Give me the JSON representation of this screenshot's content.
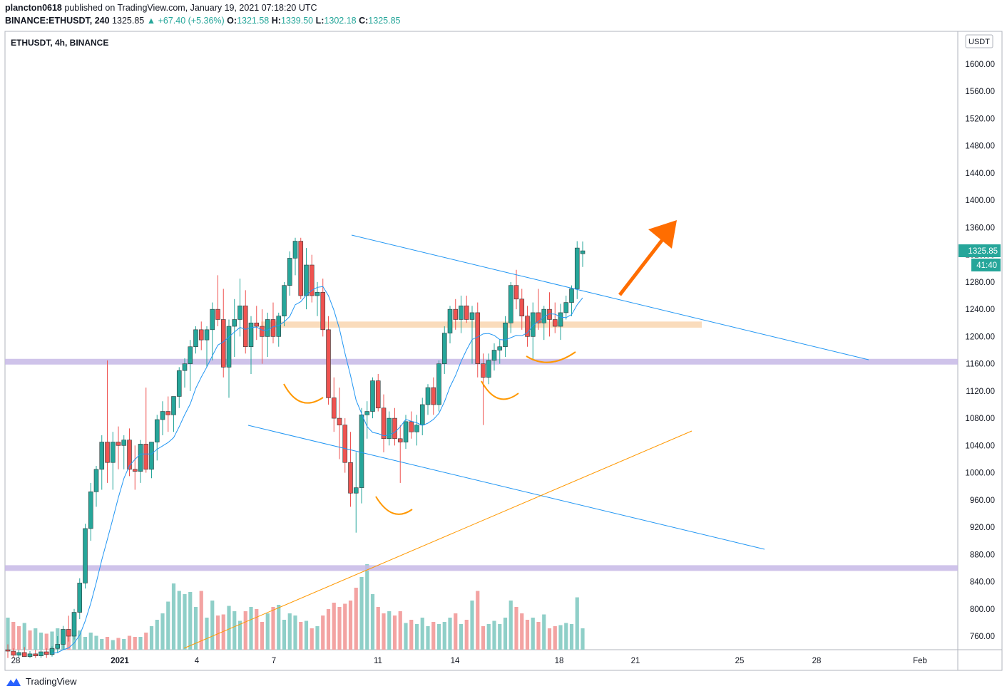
{
  "header": {
    "publisher": "plancton0618",
    "published_text": "published on TradingView.com, January 19, 2021 07:18:20 UTC",
    "symbol": "BINANCE:ETHUSDT, 240",
    "last": "1325.85",
    "change": "▲ +67.40 (+5.36%)",
    "o_label": "O:",
    "o": "1321.58",
    "h_label": "H:",
    "h": "1339.50",
    "l_label": "L:",
    "l": "1302.18",
    "c_label": "C:",
    "c": "1325.85"
  },
  "pane_title": "ETHUSDT, 4h, BINANCE",
  "currency_label": "USDT",
  "price_badge": "1325.85",
  "countdown_badge": "41:40",
  "footer_brand": "TradingView",
  "colors": {
    "up": "#26a69a",
    "down": "#ef5350",
    "vol_up": "#8fcfc8",
    "vol_down": "#f3a3a2",
    "ma": "#2196f3",
    "channel": "#2196f3",
    "support_purple": "#c7b9e6",
    "zone_orange": "#f9d3ab",
    "trend_orange": "#ff9800",
    "arrow": "#ff6d00"
  },
  "chart_data": {
    "type": "candlestick",
    "title": "ETHUSDT, 4h, BINANCE",
    "y_axis_ticks": [
      "760.00",
      "800.00",
      "840.00",
      "880.00",
      "920.00",
      "960.00",
      "1000.00",
      "1040.00",
      "1080.00",
      "1120.00",
      "1160.00",
      "1200.00",
      "1240.00",
      "1280.00",
      "1320.00",
      "1360.00",
      "1400.00",
      "1440.00",
      "1480.00",
      "1520.00",
      "1560.00",
      "1600.00"
    ],
    "x_axis_ticks": [
      "28",
      "2021",
      "4",
      "7",
      "11",
      "14",
      "18",
      "21",
      "25",
      "28",
      "Feb"
    ],
    "ylim": [
      728,
      1640
    ],
    "ohlc": [
      {
        "o": 740,
        "h": 748,
        "l": 728,
        "c": 738
      },
      {
        "o": 738,
        "h": 742,
        "l": 728,
        "c": 732
      },
      {
        "o": 732,
        "h": 740,
        "l": 728,
        "c": 736
      },
      {
        "o": 736,
        "h": 744,
        "l": 730,
        "c": 730
      },
      {
        "o": 730,
        "h": 738,
        "l": 728,
        "c": 734
      },
      {
        "o": 734,
        "h": 740,
        "l": 728,
        "c": 731
      },
      {
        "o": 731,
        "h": 740,
        "l": 728,
        "c": 737
      },
      {
        "o": 737,
        "h": 742,
        "l": 728,
        "c": 733
      },
      {
        "o": 733,
        "h": 745,
        "l": 730,
        "c": 742
      },
      {
        "o": 742,
        "h": 760,
        "l": 735,
        "c": 748
      },
      {
        "o": 748,
        "h": 775,
        "l": 740,
        "c": 770
      },
      {
        "o": 770,
        "h": 790,
        "l": 752,
        "c": 760
      },
      {
        "o": 760,
        "h": 800,
        "l": 755,
        "c": 795
      },
      {
        "o": 795,
        "h": 845,
        "l": 785,
        "c": 838
      },
      {
        "o": 838,
        "h": 925,
        "l": 830,
        "c": 918
      },
      {
        "o": 918,
        "h": 985,
        "l": 900,
        "c": 972
      },
      {
        "o": 972,
        "h": 1010,
        "l": 950,
        "c": 1005
      },
      {
        "o": 1005,
        "h": 1055,
        "l": 975,
        "c": 1045
      },
      {
        "o": 1045,
        "h": 1165,
        "l": 985,
        "c": 1015
      },
      {
        "o": 1015,
        "h": 1060,
        "l": 975,
        "c": 1045
      },
      {
        "o": 1045,
        "h": 1068,
        "l": 1005,
        "c": 1040
      },
      {
        "o": 1040,
        "h": 1055,
        "l": 1005,
        "c": 1048
      },
      {
        "o": 1048,
        "h": 1065,
        "l": 995,
        "c": 1005
      },
      {
        "o": 1005,
        "h": 1040,
        "l": 975,
        "c": 1002
      },
      {
        "o": 1002,
        "h": 1048,
        "l": 985,
        "c": 1042
      },
      {
        "o": 1042,
        "h": 1125,
        "l": 1000,
        "c": 1005
      },
      {
        "o": 1005,
        "h": 1045,
        "l": 992,
        "c": 1045
      },
      {
        "o": 1045,
        "h": 1085,
        "l": 1018,
        "c": 1078
      },
      {
        "o": 1078,
        "h": 1105,
        "l": 1055,
        "c": 1090
      },
      {
        "o": 1090,
        "h": 1112,
        "l": 1060,
        "c": 1085
      },
      {
        "o": 1085,
        "h": 1112,
        "l": 1060,
        "c": 1112
      },
      {
        "o": 1112,
        "h": 1155,
        "l": 1095,
        "c": 1150
      },
      {
        "o": 1150,
        "h": 1168,
        "l": 1125,
        "c": 1160
      },
      {
        "o": 1160,
        "h": 1195,
        "l": 1120,
        "c": 1185
      },
      {
        "o": 1185,
        "h": 1215,
        "l": 1175,
        "c": 1210
      },
      {
        "o": 1210,
        "h": 1222,
        "l": 1180,
        "c": 1195
      },
      {
        "o": 1195,
        "h": 1215,
        "l": 1155,
        "c": 1210
      },
      {
        "o": 1210,
        "h": 1250,
        "l": 1165,
        "c": 1240
      },
      {
        "o": 1240,
        "h": 1290,
        "l": 1215,
        "c": 1225
      },
      {
        "o": 1225,
        "h": 1270,
        "l": 1140,
        "c": 1155
      },
      {
        "o": 1155,
        "h": 1225,
        "l": 1110,
        "c": 1215
      },
      {
        "o": 1215,
        "h": 1255,
        "l": 1170,
        "c": 1225
      },
      {
        "o": 1225,
        "h": 1285,
        "l": 1200,
        "c": 1245
      },
      {
        "o": 1245,
        "h": 1268,
        "l": 1175,
        "c": 1185
      },
      {
        "o": 1185,
        "h": 1230,
        "l": 1145,
        "c": 1220
      },
      {
        "o": 1220,
        "h": 1245,
        "l": 1195,
        "c": 1215
      },
      {
        "o": 1215,
        "h": 1240,
        "l": 1160,
        "c": 1200
      },
      {
        "o": 1200,
        "h": 1235,
        "l": 1170,
        "c": 1225
      },
      {
        "o": 1225,
        "h": 1250,
        "l": 1190,
        "c": 1200
      },
      {
        "o": 1200,
        "h": 1235,
        "l": 1185,
        "c": 1230
      },
      {
        "o": 1230,
        "h": 1280,
        "l": 1215,
        "c": 1275
      },
      {
        "o": 1275,
        "h": 1325,
        "l": 1260,
        "c": 1315
      },
      {
        "o": 1315,
        "h": 1345,
        "l": 1290,
        "c": 1340
      },
      {
        "o": 1340,
        "h": 1345,
        "l": 1255,
        "c": 1260
      },
      {
        "o": 1260,
        "h": 1330,
        "l": 1240,
        "c": 1305
      },
      {
        "o": 1305,
        "h": 1320,
        "l": 1250,
        "c": 1260
      },
      {
        "o": 1260,
        "h": 1280,
        "l": 1230,
        "c": 1265
      },
      {
        "o": 1265,
        "h": 1285,
        "l": 1200,
        "c": 1210
      },
      {
        "o": 1210,
        "h": 1230,
        "l": 1100,
        "c": 1110
      },
      {
        "o": 1110,
        "h": 1140,
        "l": 1060,
        "c": 1080
      },
      {
        "o": 1080,
        "h": 1125,
        "l": 1020,
        "c": 1070
      },
      {
        "o": 1070,
        "h": 1080,
        "l": 1000,
        "c": 1015
      },
      {
        "o": 1015,
        "h": 1060,
        "l": 950,
        "c": 970
      },
      {
        "o": 970,
        "h": 1030,
        "l": 912,
        "c": 978
      },
      {
        "o": 978,
        "h": 1095,
        "l": 955,
        "c": 1085
      },
      {
        "o": 1085,
        "h": 1105,
        "l": 1050,
        "c": 1090
      },
      {
        "o": 1090,
        "h": 1140,
        "l": 1080,
        "c": 1135
      },
      {
        "o": 1135,
        "h": 1145,
        "l": 1090,
        "c": 1095
      },
      {
        "o": 1095,
        "h": 1115,
        "l": 1030,
        "c": 1050
      },
      {
        "o": 1050,
        "h": 1090,
        "l": 1040,
        "c": 1080
      },
      {
        "o": 1080,
        "h": 1095,
        "l": 1040,
        "c": 1050
      },
      {
        "o": 1050,
        "h": 1070,
        "l": 985,
        "c": 1045
      },
      {
        "o": 1045,
        "h": 1085,
        "l": 1035,
        "c": 1075
      },
      {
        "o": 1075,
        "h": 1090,
        "l": 1050,
        "c": 1060
      },
      {
        "o": 1060,
        "h": 1085,
        "l": 1040,
        "c": 1070
      },
      {
        "o": 1070,
        "h": 1110,
        "l": 1055,
        "c": 1100
      },
      {
        "o": 1100,
        "h": 1130,
        "l": 1085,
        "c": 1125
      },
      {
        "o": 1125,
        "h": 1140,
        "l": 1085,
        "c": 1100
      },
      {
        "o": 1100,
        "h": 1165,
        "l": 1090,
        "c": 1160
      },
      {
        "o": 1160,
        "h": 1215,
        "l": 1145,
        "c": 1205
      },
      {
        "o": 1205,
        "h": 1245,
        "l": 1190,
        "c": 1240
      },
      {
        "o": 1240,
        "h": 1255,
        "l": 1210,
        "c": 1225
      },
      {
        "o": 1225,
        "h": 1260,
        "l": 1205,
        "c": 1245
      },
      {
        "o": 1245,
        "h": 1260,
        "l": 1220,
        "c": 1225
      },
      {
        "o": 1225,
        "h": 1245,
        "l": 1160,
        "c": 1235
      },
      {
        "o": 1235,
        "h": 1250,
        "l": 1140,
        "c": 1160
      },
      {
        "o": 1160,
        "h": 1175,
        "l": 1070,
        "c": 1140
      },
      {
        "o": 1140,
        "h": 1175,
        "l": 1130,
        "c": 1165
      },
      {
        "o": 1165,
        "h": 1190,
        "l": 1150,
        "c": 1180
      },
      {
        "o": 1180,
        "h": 1195,
        "l": 1160,
        "c": 1185
      },
      {
        "o": 1185,
        "h": 1230,
        "l": 1170,
        "c": 1220
      },
      {
        "o": 1220,
        "h": 1280,
        "l": 1205,
        "c": 1275
      },
      {
        "o": 1275,
        "h": 1298,
        "l": 1240,
        "c": 1255
      },
      {
        "o": 1255,
        "h": 1270,
        "l": 1210,
        "c": 1230
      },
      {
        "o": 1230,
        "h": 1245,
        "l": 1185,
        "c": 1200
      },
      {
        "o": 1200,
        "h": 1250,
        "l": 1165,
        "c": 1235
      },
      {
        "o": 1235,
        "h": 1270,
        "l": 1210,
        "c": 1220
      },
      {
        "o": 1220,
        "h": 1245,
        "l": 1195,
        "c": 1240
      },
      {
        "o": 1240,
        "h": 1265,
        "l": 1200,
        "c": 1225
      },
      {
        "o": 1225,
        "h": 1250,
        "l": 1205,
        "c": 1215
      },
      {
        "o": 1215,
        "h": 1248,
        "l": 1195,
        "c": 1235
      },
      {
        "o": 1235,
        "h": 1260,
        "l": 1225,
        "c": 1250
      },
      {
        "o": 1250,
        "h": 1275,
        "l": 1230,
        "c": 1270
      },
      {
        "o": 1270,
        "h": 1340,
        "l": 1255,
        "c": 1330
      },
      {
        "o": 1321.58,
        "h": 1339.5,
        "l": 1302.18,
        "c": 1325.85
      }
    ],
    "volume_relative": [
      0.3,
      0.26,
      0.22,
      0.25,
      0.18,
      0.2,
      0.16,
      0.15,
      0.17,
      0.2,
      0.13,
      0.16,
      0.14,
      0.18,
      0.12,
      0.16,
      0.13,
      0.1,
      0.12,
      0.09,
      0.11,
      0.1,
      0.13,
      0.12,
      0.12,
      0.16,
      0.22,
      0.28,
      0.34,
      0.45,
      0.62,
      0.55,
      0.52,
      0.54,
      0.4,
      0.55,
      0.3,
      0.46,
      0.32,
      0.33,
      0.41,
      0.36,
      0.27,
      0.36,
      0.4,
      0.38,
      0.26,
      0.34,
      0.4,
      0.42,
      0.28,
      0.34,
      0.32,
      0.26,
      0.27,
      0.2,
      0.22,
      0.32,
      0.38,
      0.44,
      0.4,
      0.43,
      0.46,
      0.58,
      0.68,
      0.8,
      0.52,
      0.4,
      0.34,
      0.36,
      0.32,
      0.36,
      0.25,
      0.28,
      0.24,
      0.3,
      0.22,
      0.26,
      0.24,
      0.26,
      0.3,
      0.34,
      0.24,
      0.28,
      0.46,
      0.55,
      0.22,
      0.24,
      0.27,
      0.24,
      0.3,
      0.46,
      0.4,
      0.34,
      0.28,
      0.3,
      0.26,
      0.33,
      0.2,
      0.22,
      0.23,
      0.25,
      0.24,
      0.49,
      0.2
    ],
    "volume_up": [
      true,
      false,
      false,
      true,
      false,
      true,
      true,
      false,
      true,
      true,
      true,
      false,
      true,
      true,
      true,
      true,
      true,
      true,
      false,
      true,
      false,
      true,
      false,
      false,
      true,
      false,
      true,
      true,
      true,
      true,
      true,
      true,
      true,
      true,
      true,
      false,
      true,
      true,
      false,
      false,
      true,
      true,
      true,
      false,
      true,
      false,
      false,
      true,
      false,
      true,
      true,
      true,
      true,
      false,
      true,
      false,
      true,
      false,
      false,
      false,
      false,
      false,
      false,
      false,
      true,
      true,
      true,
      false,
      false,
      true,
      false,
      false,
      true,
      false,
      true,
      true,
      true,
      false,
      true,
      true,
      true,
      false,
      true,
      false,
      true,
      false,
      false,
      true,
      true,
      true,
      true,
      true,
      false,
      false,
      false,
      true,
      false,
      true,
      false,
      false,
      true,
      true,
      true,
      true,
      true
    ],
    "moving_average_series": "short MA",
    "drawings": {
      "support_levels": [
        1163,
        860
      ],
      "resistance_zone": [
        1213,
        1222
      ],
      "channel_upper": [
        [
          1350,
          1167
        ],
        [
          1256,
          1165
        ]
      ],
      "channel_lower": [
        [
          1072,
          1070
        ],
        [
          885,
          885
        ]
      ]
    }
  }
}
